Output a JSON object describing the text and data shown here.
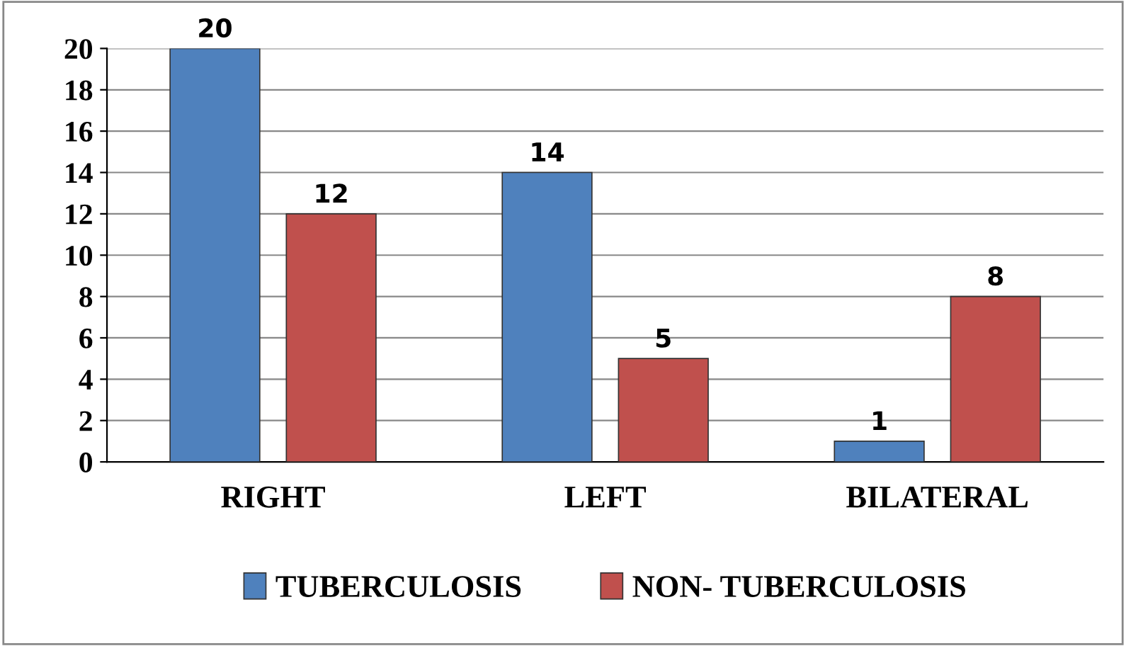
{
  "chart_data": {
    "type": "bar",
    "categories": [
      "RIGHT",
      "LEFT",
      "BILATERAL"
    ],
    "series": [
      {
        "name": "TUBERCULOSIS",
        "color": "#4f81bd",
        "values": [
          20,
          14,
          1
        ]
      },
      {
        "name": "NON- TUBERCULOSIS",
        "color": "#c0504d",
        "values": [
          12,
          5,
          8
        ]
      }
    ],
    "ylim": [
      0,
      20
    ],
    "yticks": [
      0,
      2,
      4,
      6,
      8,
      10,
      12,
      14,
      16,
      18,
      20
    ],
    "grid": "y",
    "legend": "bottom",
    "data_labels": true
  }
}
